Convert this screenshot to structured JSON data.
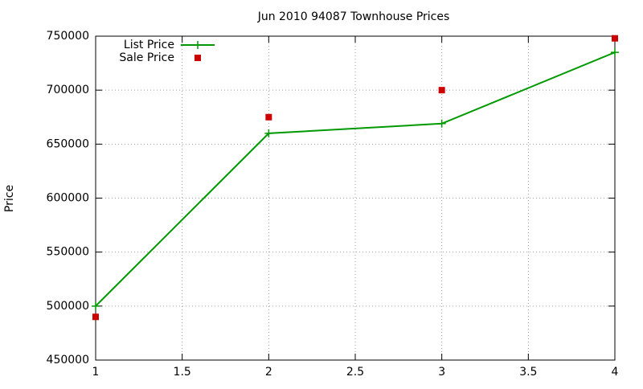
{
  "chart_data": {
    "type": "line",
    "title": "Jun 2010 94087 Townhouse Prices",
    "y_label": "Price",
    "x": [
      1,
      2,
      3,
      4
    ],
    "series": [
      {
        "name": "List Price",
        "color": "#009900",
        "values": [
          500000,
          660000,
          669000,
          735000
        ],
        "line": true,
        "marker": "plus"
      },
      {
        "name": "Sale Price",
        "color": "#cc0000",
        "values": [
          490000,
          675000,
          700000,
          748000
        ],
        "line": false,
        "marker": "square"
      }
    ],
    "xlim": [
      1,
      4
    ],
    "xticks": [
      1,
      1.5,
      2,
      2.5,
      3,
      3.5,
      4
    ],
    "ylim": [
      450000,
      750000
    ],
    "yticks": [
      450000,
      500000,
      550000,
      600000,
      650000,
      700000,
      750000
    ],
    "grid": true,
    "legend": "top-left"
  }
}
